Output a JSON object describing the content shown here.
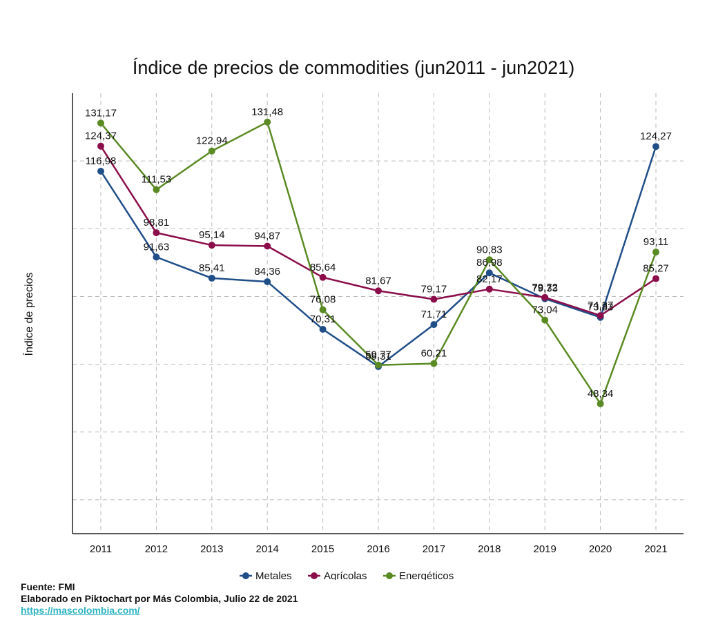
{
  "colors": {
    "metales": "#1f4e89",
    "agricolas": "#8b0d4a",
    "energeticos": "#5a8a23",
    "grid": "#bbbbbb",
    "axis": "#222222"
  },
  "chart_data": {
    "type": "line",
    "title": "Índice de precios de commodities (jun2011 - jun2021)",
    "xlabel": "",
    "ylabel": "Índice de precios",
    "x": [
      "2011",
      "2012",
      "2013",
      "2014",
      "2015",
      "2016",
      "2017",
      "2018",
      "2019",
      "2020",
      "2021"
    ],
    "ylim": [
      10,
      140
    ],
    "grid": true,
    "legend": "bottom-center",
    "series": [
      {
        "name": "Metales",
        "key": "metales",
        "values": [
          116.98,
          91.63,
          85.41,
          84.36,
          70.31,
          59.31,
          71.71,
          86.98,
          79.33,
          73.83,
          124.27
        ],
        "labels": [
          "116,98",
          "91,63",
          "85,41",
          "84,36",
          "70,31",
          "59,31",
          "71,71",
          "86,98",
          "79,33",
          "73,83",
          "124,27"
        ]
      },
      {
        "name": "Agrícolas",
        "key": "agricolas",
        "values": [
          124.37,
          98.81,
          95.14,
          94.87,
          85.64,
          81.67,
          79.17,
          82.17,
          79.72,
          74.37,
          85.27
        ],
        "labels": [
          "124,37",
          "98,81",
          "95,14",
          "94,87",
          "85,64",
          "81,67",
          "79,17",
          "82,17",
          "79,72",
          "74,37",
          "85,27"
        ]
      },
      {
        "name": "Energéticos",
        "key": "energeticos",
        "values": [
          131.17,
          111.53,
          122.94,
          131.48,
          76.08,
          59.77,
          60.21,
          90.83,
          73.04,
          48.34,
          93.11
        ],
        "labels": [
          "131,17",
          "111,53",
          "122,94",
          "131,48",
          "76,08",
          "59,77",
          "60,21",
          "90,83",
          "73,04",
          "48,34",
          "93,11"
        ]
      }
    ]
  },
  "footer": {
    "source": "Fuente: FMI",
    "credit": "Elaborado en Piktochart por Más Colombia, Julio 22 de 2021",
    "link": "https://mascolombia.com/"
  }
}
